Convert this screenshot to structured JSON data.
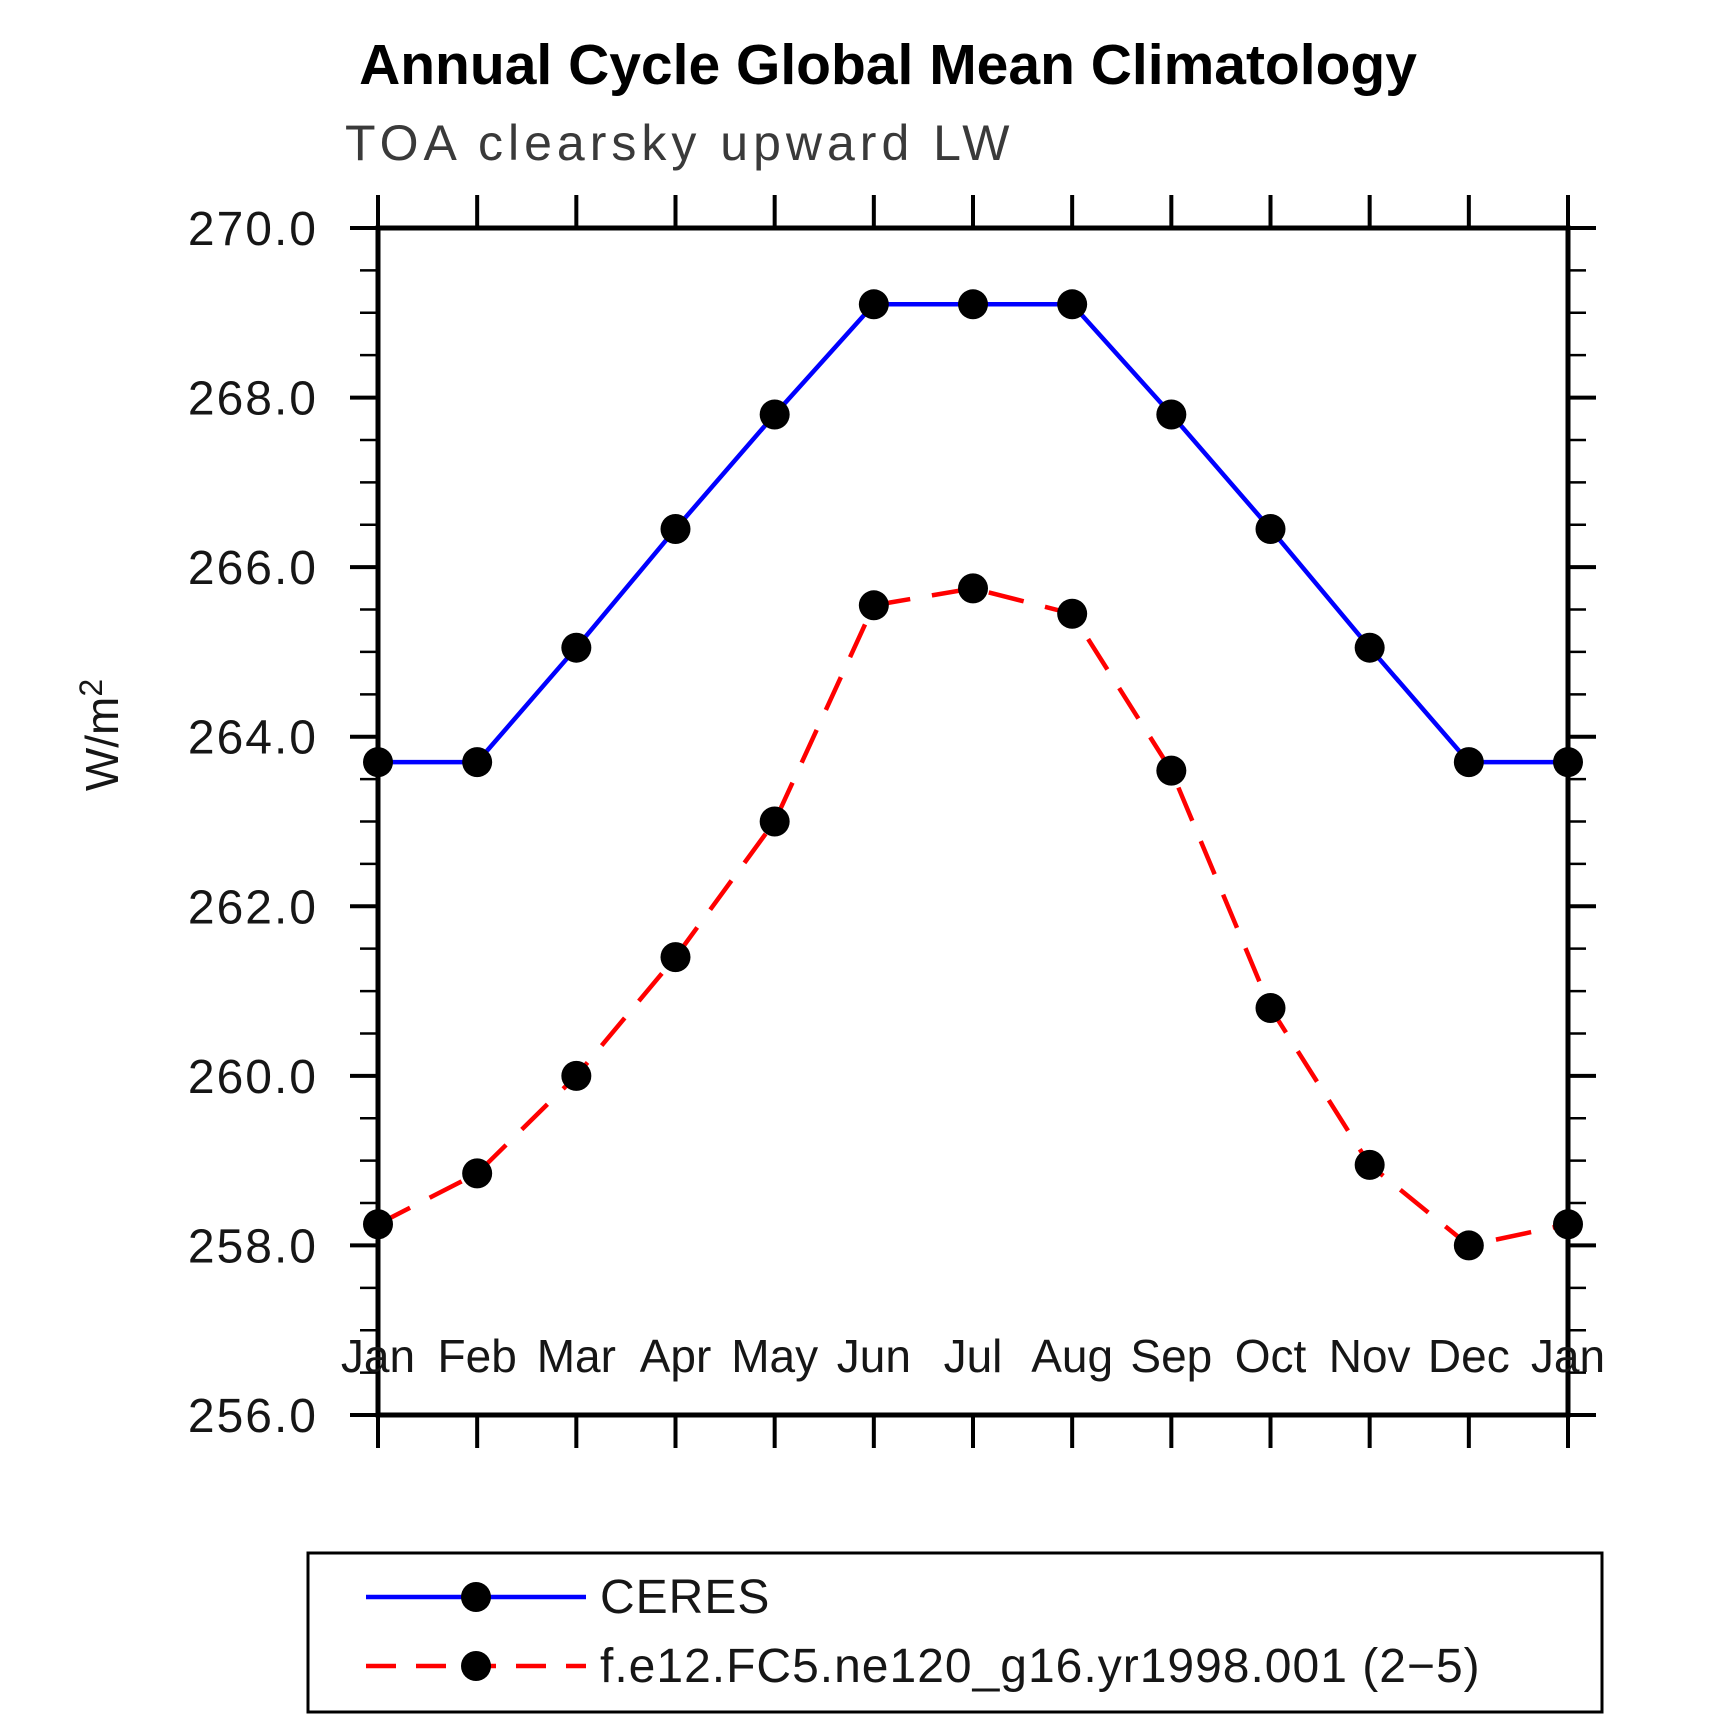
{
  "title": "Annual Cycle Global Mean Climatology",
  "subtitle": "TOA clearsky upward LW",
  "ylabel": {
    "base": "W/m",
    "sup": "2"
  },
  "colors": {
    "ceres_line": "#0000ff",
    "model_line": "#ff0000",
    "marker": "#000000",
    "axis": "#000000",
    "background": "#ffffff"
  },
  "chart_data": {
    "type": "line",
    "x_categories": [
      "Jan",
      "Feb",
      "Mar",
      "Apr",
      "May",
      "Jun",
      "Jul",
      "Aug",
      "Sep",
      "Oct",
      "Nov",
      "Dec",
      "Jan"
    ],
    "series": [
      {
        "name": "CERES",
        "color": "#0000ff",
        "line_style": "solid",
        "marker": "filled-circle",
        "values": [
          263.7,
          263.7,
          265.05,
          266.45,
          267.8,
          269.1,
          269.1,
          269.1,
          267.8,
          266.45,
          265.05,
          263.7,
          263.7
        ]
      },
      {
        "name": "f.e12.FC5.ne120_g16.yr1998.001 (2−5)",
        "color": "#ff0000",
        "line_style": "dashed",
        "marker": "filled-circle",
        "values": [
          258.25,
          258.85,
          260.0,
          261.4,
          263.0,
          265.55,
          265.75,
          265.45,
          263.6,
          260.8,
          258.95,
          258.0,
          258.25
        ]
      }
    ],
    "ylim": [
      256.0,
      270.0
    ],
    "ytick_major_step": 2.0,
    "ytick_minor_step": 0.5,
    "ytick_labels": [
      "256.0",
      "258.0",
      "260.0",
      "262.0",
      "264.0",
      "266.0",
      "268.0",
      "270.0"
    ],
    "grid": "off",
    "legend_position": "bottom"
  }
}
